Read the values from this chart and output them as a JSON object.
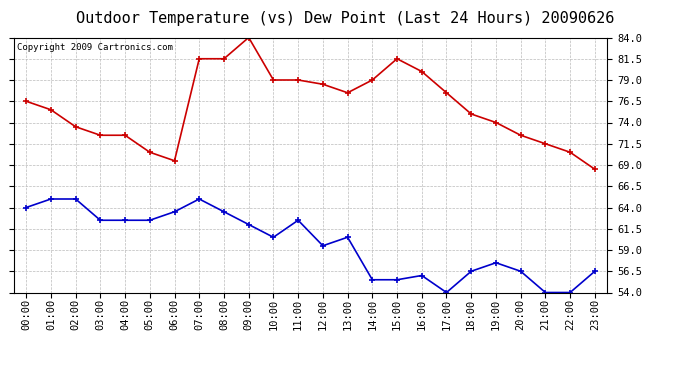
{
  "title": "Outdoor Temperature (vs) Dew Point (Last 24 Hours) 20090626",
  "copyright": "Copyright 2009 Cartronics.com",
  "hours": [
    "00:00",
    "01:00",
    "02:00",
    "03:00",
    "04:00",
    "05:00",
    "06:00",
    "07:00",
    "08:00",
    "09:00",
    "10:00",
    "11:00",
    "12:00",
    "13:00",
    "14:00",
    "15:00",
    "16:00",
    "17:00",
    "18:00",
    "19:00",
    "20:00",
    "21:00",
    "22:00",
    "23:00"
  ],
  "temp": [
    76.5,
    75.5,
    73.5,
    72.5,
    72.5,
    70.5,
    69.5,
    81.5,
    81.5,
    84.0,
    79.0,
    79.0,
    78.5,
    77.5,
    79.0,
    81.5,
    80.0,
    77.5,
    75.0,
    74.0,
    72.5,
    71.5,
    70.5,
    68.5
  ],
  "dew": [
    64.0,
    65.0,
    65.0,
    62.5,
    62.5,
    62.5,
    63.5,
    65.0,
    63.5,
    62.0,
    60.5,
    62.5,
    59.5,
    60.5,
    55.5,
    55.5,
    56.0,
    54.0,
    56.5,
    57.5,
    56.5,
    54.0,
    54.0,
    56.5
  ],
  "temp_color": "#cc0000",
  "dew_color": "#0000cc",
  "bg_color": "#ffffff",
  "plot_bg_color": "#ffffff",
  "grid_color": "#bbbbbb",
  "ylim_min": 54.0,
  "ylim_max": 84.0,
  "yticks": [
    54.0,
    56.5,
    59.0,
    61.5,
    64.0,
    66.5,
    69.0,
    71.5,
    74.0,
    76.5,
    79.0,
    81.5,
    84.0
  ],
  "title_fontsize": 11,
  "tick_fontsize": 7.5,
  "copyright_fontsize": 6.5,
  "marker": "+",
  "marker_size": 5,
  "linewidth": 1.2
}
